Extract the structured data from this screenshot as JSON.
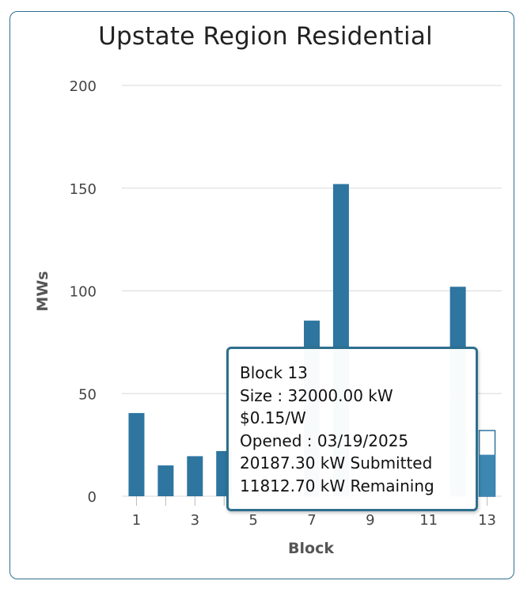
{
  "colors": {
    "bar": "#2e75a0",
    "border": "#2e6f8e",
    "grid": "#d9d9d9"
  },
  "chart_data": {
    "type": "bar",
    "title": "Upstate Region Residential",
    "xlabel": "Block",
    "ylabel": "MWs",
    "ylim": [
      0,
      200
    ],
    "yticks": [
      "0",
      "50",
      "100",
      "150",
      "200"
    ],
    "xtick_labels": [
      "1",
      "3",
      "5",
      "7",
      "9",
      "11",
      "13"
    ],
    "categories": [
      "1",
      "2",
      "3",
      "4",
      "5",
      "6",
      "7",
      "8",
      "9",
      "10",
      "11",
      "12",
      "13"
    ],
    "values": [
      40.5,
      15,
      19.5,
      22,
      0,
      0,
      85.5,
      152,
      0,
      0,
      0,
      102,
      20.2
    ],
    "capacity_block_13": 32,
    "grid": true,
    "legend": "none"
  },
  "tooltip": {
    "block": "Block 13",
    "size": "Size : 32000.00 kW",
    "price": "$0.15/W",
    "opened": "Opened : 03/19/2025",
    "submitted": "20187.30 kW Submitted",
    "remaining": "11812.70 kW Remaining"
  }
}
